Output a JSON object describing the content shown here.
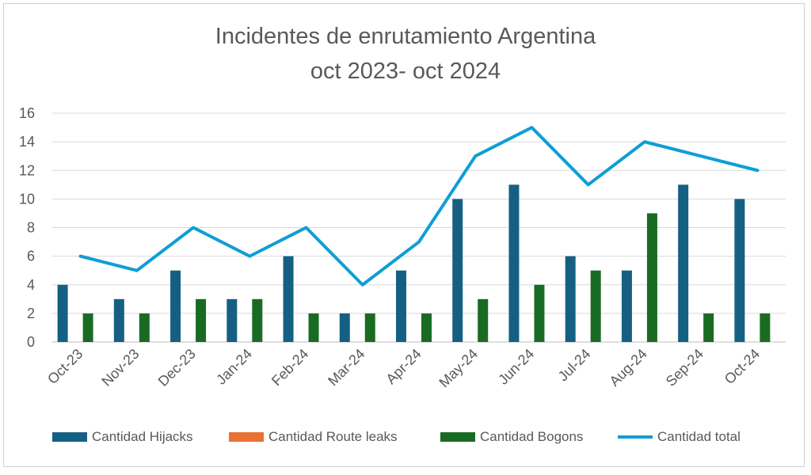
{
  "chart_data": {
    "type": "bar",
    "title": [
      "Incidentes de enrutamiento Argentina",
      "oct 2023- oct 2024"
    ],
    "xlabel": "",
    "ylabel": "",
    "ylim": [
      0,
      16
    ],
    "yticks": [
      0,
      2,
      4,
      6,
      8,
      10,
      12,
      14,
      16
    ],
    "grid": true,
    "legend_position": "bottom",
    "categories": [
      "Oct-23",
      "Nov-23",
      "Dec-23",
      "Jan-24",
      "Feb-24",
      "Mar-24",
      "Apr-24",
      "May-24",
      "Jun-24",
      "Jul-24",
      "Aug-24",
      "Sep-24",
      "Oct-24"
    ],
    "series": [
      {
        "name": "Cantidad Hijacks",
        "type": "bar",
        "color": "#156082",
        "values": [
          4,
          3,
          5,
          3,
          6,
          2,
          5,
          10,
          11,
          6,
          5,
          11,
          10
        ]
      },
      {
        "name": "Cantidad Route leaks",
        "type": "bar",
        "color": "#E97132",
        "values": [
          0,
          0,
          0,
          0,
          0,
          0,
          0,
          0,
          0,
          0,
          0,
          0,
          0
        ]
      },
      {
        "name": "Cantidad Bogons",
        "type": "bar",
        "color": "#196B24",
        "values": [
          2,
          2,
          3,
          3,
          2,
          2,
          2,
          3,
          4,
          5,
          9,
          2,
          2
        ]
      },
      {
        "name": "Cantidad total",
        "type": "line",
        "color": "#0F9ED5",
        "values": [
          6,
          5,
          8,
          6,
          8,
          4,
          7,
          13,
          15,
          11,
          14,
          13,
          12
        ]
      }
    ]
  }
}
